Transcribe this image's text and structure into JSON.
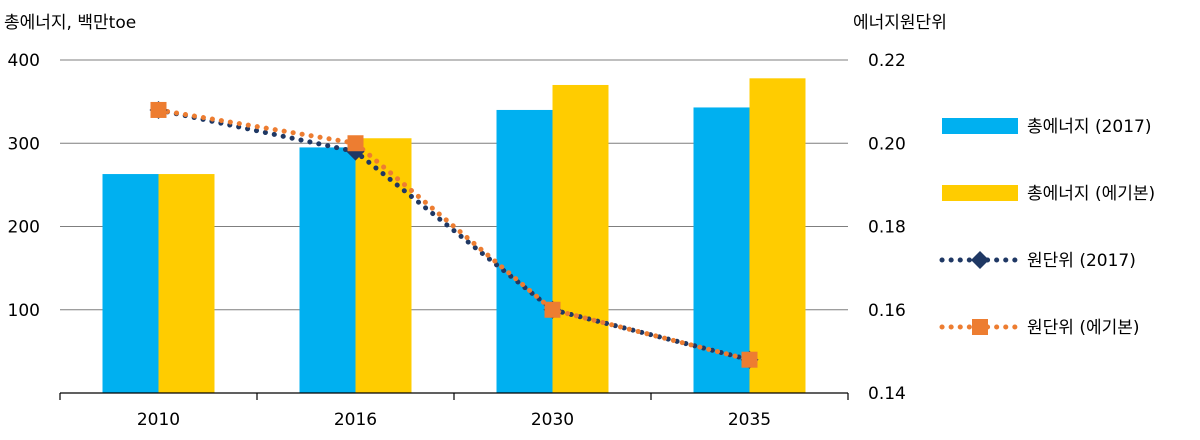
{
  "chart_data": {
    "type": "bar",
    "categories": [
      "2010",
      "2016",
      "2030",
      "2035"
    ],
    "y_left": {
      "label": "총에너지, 백만toe",
      "ticks": [
        "100",
        "200",
        "300",
        "400"
      ],
      "range": [
        0,
        400
      ]
    },
    "y_right": {
      "label": "에너지원단위",
      "ticks": [
        "0.14",
        "0.16",
        "0.18",
        "0.20",
        "0.22"
      ],
      "range": [
        0.14,
        0.22
      ]
    },
    "bar_series": [
      {
        "name": "총에너지 (2017)",
        "color": "#00B0F0",
        "values": [
          263,
          295,
          340,
          343
        ]
      },
      {
        "name": "총에너지 (에기본)",
        "color": "#FFCC00",
        "values": [
          263,
          306,
          370,
          378
        ]
      }
    ],
    "line_series": [
      {
        "name": "원단위 (2017)",
        "color": "#1F3864",
        "marker": "diamond",
        "values": [
          0.208,
          0.198,
          0.16,
          0.148
        ]
      },
      {
        "name": "원단위 (에기본)",
        "color": "#ED7D31",
        "marker": "square",
        "values": [
          0.208,
          0.2,
          0.16,
          0.148
        ]
      }
    ],
    "grid": true,
    "legend_position": "right"
  }
}
